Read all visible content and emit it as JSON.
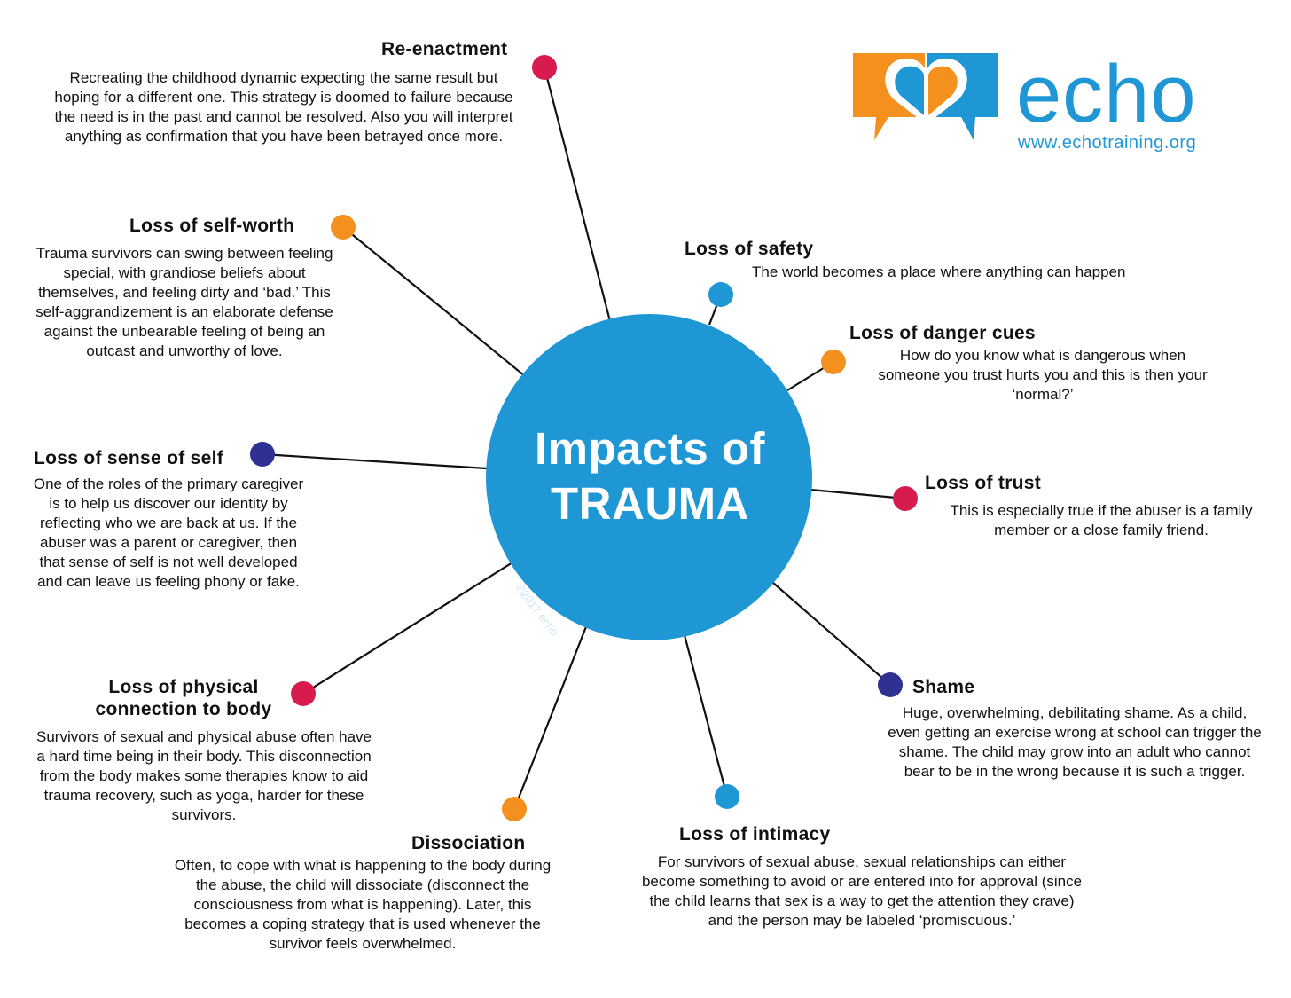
{
  "center": {
    "line1": "Impacts of",
    "line2": "TRAUMA",
    "copyright": "©2017 echo"
  },
  "logo": {
    "word": "echo",
    "url": "www.echotraining.org"
  },
  "colors": {
    "blue": "#1f97d4",
    "red": "#d81b4f",
    "orange": "#f4901e",
    "navy": "#2e3192"
  },
  "impacts": [
    {
      "title": "Re-enactment",
      "dot_color": "red",
      "text": "Recreating the childhood dynamic expecting the same result but hoping for a different one. This strategy is doomed to failure because the need is in the past and cannot be resolved. Also you will interpret anything as confirmation that you have been betrayed once more."
    },
    {
      "title": "Loss of self-worth",
      "dot_color": "orange",
      "text": "Trauma survivors can swing between feeling special, with grandiose beliefs about themselves, and feeling dirty and ‘bad.’ This self-aggrandizement is an elaborate defense against the unbearable feeling of being an outcast and unworthy of love."
    },
    {
      "title": "Loss of sense of self",
      "dot_color": "navy",
      "text": "One of the roles of the primary caregiver is to help us discover our identity by reflecting who we are back at us. If the abuser was a parent or caregiver, then that sense of self is not well developed and can leave us feeling phony or fake."
    },
    {
      "title": "Loss of physical connection to body",
      "title_line1": "Loss of physical",
      "title_line2": "connection to body",
      "dot_color": "red",
      "text": "Survivors of sexual and physical abuse often have a hard time being in their body.  This disconnection from the body makes some therapies know to aid trauma recovery, such as yoga, harder for these survivors."
    },
    {
      "title": "Dissociation",
      "dot_color": "orange",
      "text": "Often, to cope with what is happening to the body during the abuse, the child will dissociate (disconnect the consciousness from what is happening). Later, this becomes a coping strategy that is used whenever the survivor feels overwhelmed."
    },
    {
      "title": "Loss of intimacy",
      "dot_color": "blue",
      "text": "For survivors of sexual abuse, sexual relationships can either become something to avoid or are entered into for approval (since the child learns that sex is a way to get the attention they crave) and the person may be labeled ‘promiscuous.’"
    },
    {
      "title": "Shame",
      "dot_color": "navy",
      "text": "Huge, overwhelming, debilitating shame. As a child, even getting an exercise wrong at school can trigger the shame. The child may grow into an adult who cannot bear to be in the wrong because it is such a trigger."
    },
    {
      "title": "Loss of trust",
      "dot_color": "red",
      "text": "This is especially true if the abuser is a family member or a close family friend."
    },
    {
      "title": "Loss of danger cues",
      "dot_color": "orange",
      "text": "How do you know what is dangerous when someone you trust hurts you and this is then your ‘normal?’"
    },
    {
      "title": "Loss of safety",
      "dot_color": "blue",
      "text": "The world becomes a place where anything can happen"
    }
  ]
}
